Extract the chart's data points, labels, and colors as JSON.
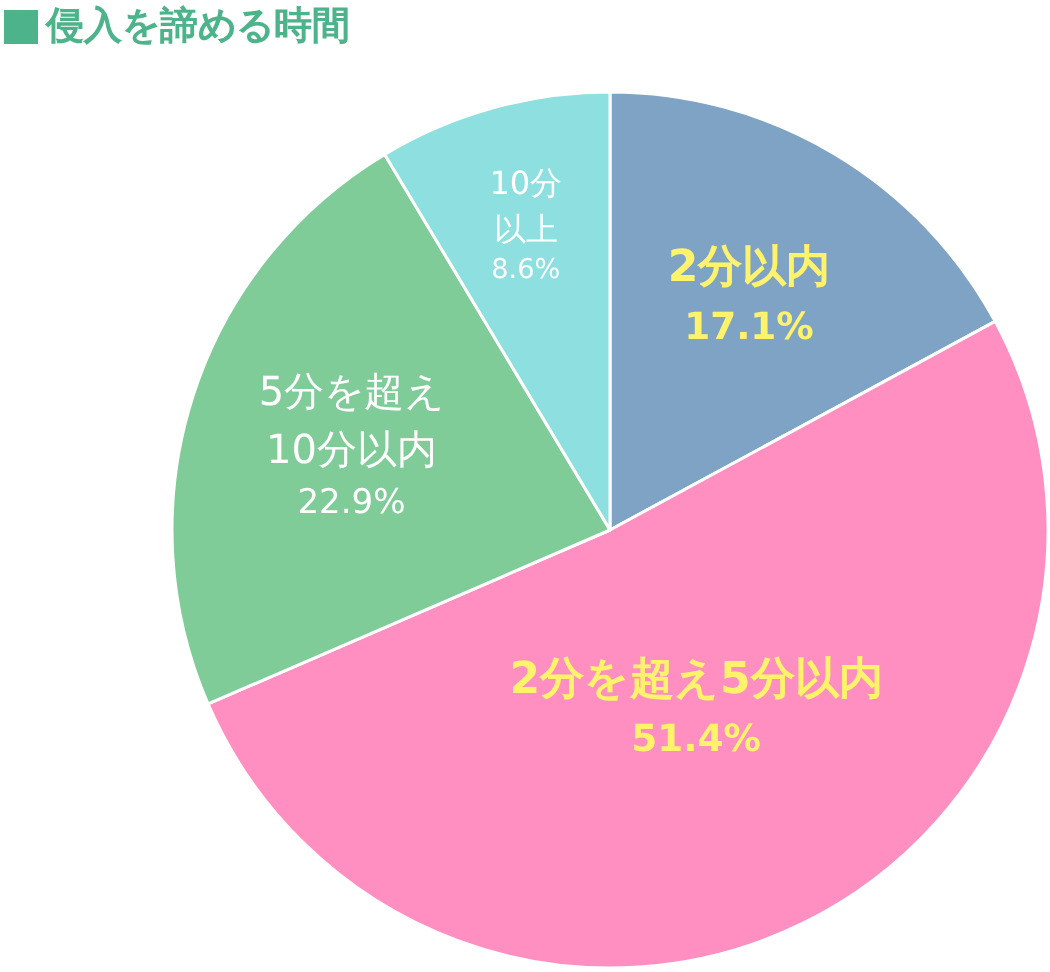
{
  "chart_data": {
    "type": "pie",
    "title": "侵入を諦める時間",
    "categories": [
      "2分以内",
      "2分を超え5分以内",
      "5分を超え10分以内",
      "10分以上"
    ],
    "values": [
      17.1,
      51.4,
      22.9,
      8.6
    ],
    "colors": [
      "#7fa3c4",
      "#ff8ec1",
      "#80cc99",
      "#8ee0e0"
    ],
    "value_labels": [
      "17.1%",
      "51.4%",
      "22.9%",
      "8.6%"
    ]
  }
}
